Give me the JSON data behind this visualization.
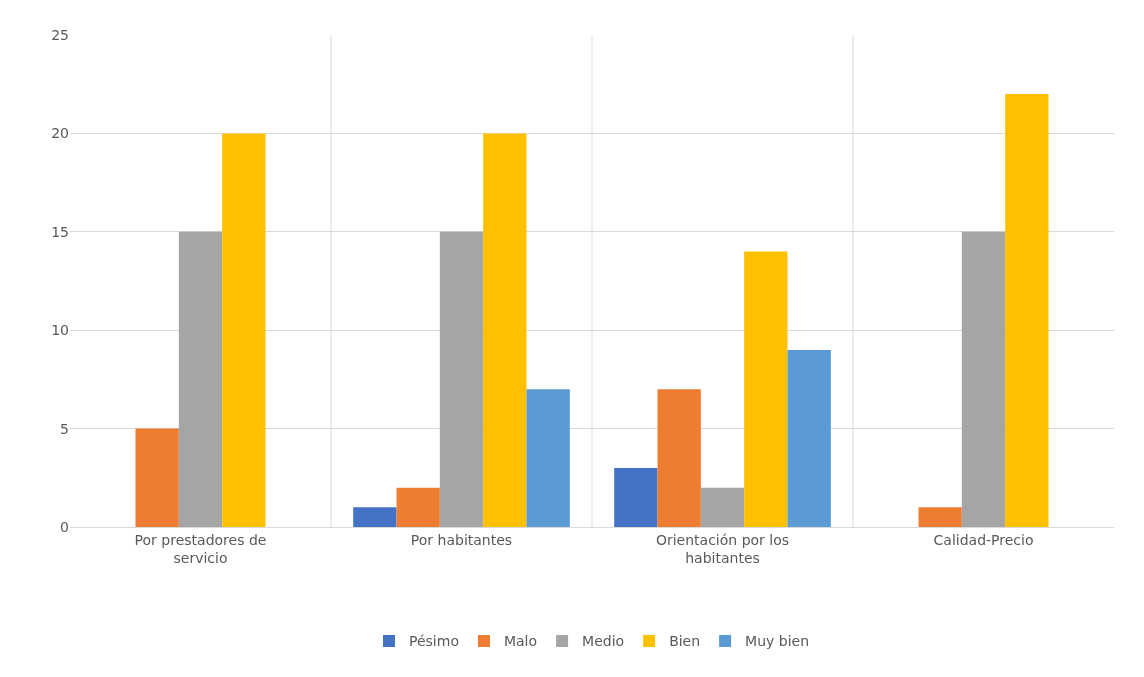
{
  "chart_data": {
    "type": "bar",
    "categories": [
      "Por prestadores de servicio",
      "Por habitantes",
      "Orientación por los habitantes",
      "Calidad-Precio"
    ],
    "series": [
      {
        "name": "Pésimo",
        "color": "#4472c4",
        "values": [
          0,
          1,
          3,
          0
        ]
      },
      {
        "name": "Malo",
        "color": "#ed7d31",
        "values": [
          5,
          2,
          7,
          1
        ]
      },
      {
        "name": "Medio",
        "color": "#a5a5a5",
        "values": [
          15,
          15,
          2,
          15
        ]
      },
      {
        "name": "Bien",
        "color": "#ffc000",
        "values": [
          20,
          20,
          14,
          22
        ]
      },
      {
        "name": "Muy bien",
        "color": "#5b9bd5",
        "values": [
          0,
          7,
          9,
          0
        ]
      }
    ],
    "ylim": [
      0,
      25
    ],
    "yticks": [
      0,
      5,
      10,
      15,
      20,
      25
    ],
    "grid": true,
    "legend": "bottom"
  }
}
